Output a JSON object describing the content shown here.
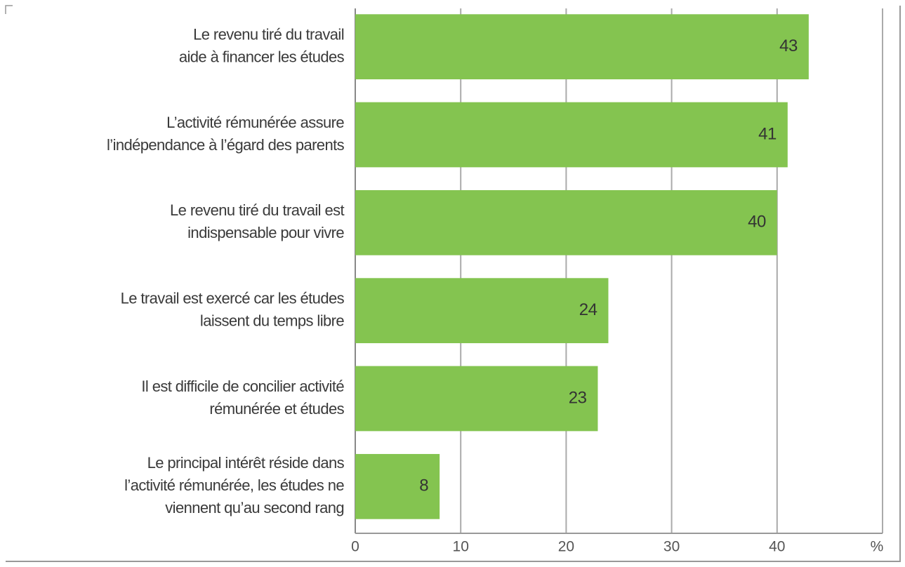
{
  "chart_data": {
    "type": "barh",
    "categories": [
      [
        "Le revenu tiré du travail",
        "aide à financer les études"
      ],
      [
        "L’activité rémunérée assure",
        "l’indépendance à l’égard des parents"
      ],
      [
        "Le revenu tiré du travail est",
        "indispensable pour vivre"
      ],
      [
        "Le travail est exercé car les études",
        "laissent du temps libre"
      ],
      [
        "Il est difficile de concilier activité",
        "rémunérée et études"
      ],
      [
        "Le principal intérêt réside dans",
        "l’activité rémunérée, les études ne",
        "viennent qu’au second rang"
      ]
    ],
    "values": [
      43,
      41,
      40,
      24,
      23,
      8
    ],
    "color": "#84c450",
    "xlim": [
      0,
      50
    ],
    "xticks": [
      0,
      10,
      20,
      30,
      40,
      {
        "value": 50,
        "label": "%"
      }
    ],
    "grid": true
  }
}
